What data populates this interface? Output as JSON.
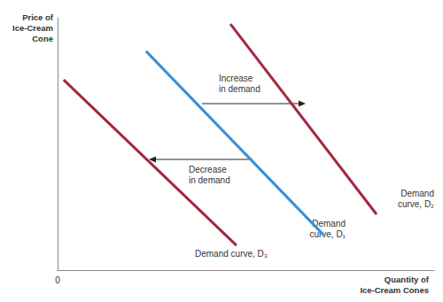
{
  "chart_data": {
    "type": "line",
    "x_label": "Quantity of\nIce-Cream Cones",
    "y_label": "Price of\nIce-Cream\nCone",
    "xlim": [
      0,
      100
    ],
    "ylim": [
      0,
      100
    ],
    "xticks": [
      0
    ],
    "yticks": [
      0
    ],
    "tick_labels": "x",
    "grid": false,
    "series": [
      {
        "name": "Demand\ncurve, D₁",
        "color": "#3b8fd4",
        "x": [
          23.5,
          70.6
        ],
        "values": [
          86.7,
          14.0
        ]
      },
      {
        "name": "Demand\ncurve, D₂",
        "color": "#a3283f",
        "x": [
          45.9,
          84.7
        ],
        "values": [
          97.5,
          22.1
        ]
      },
      {
        "name": "Demand curve, D₃",
        "color": "#a3283f",
        "x": [
          1.6,
          47.5
        ],
        "values": [
          75.4,
          9.8
        ]
      }
    ],
    "annotations": [
      "Increase\nin demand",
      "Decrease\nin demand"
    ]
  }
}
